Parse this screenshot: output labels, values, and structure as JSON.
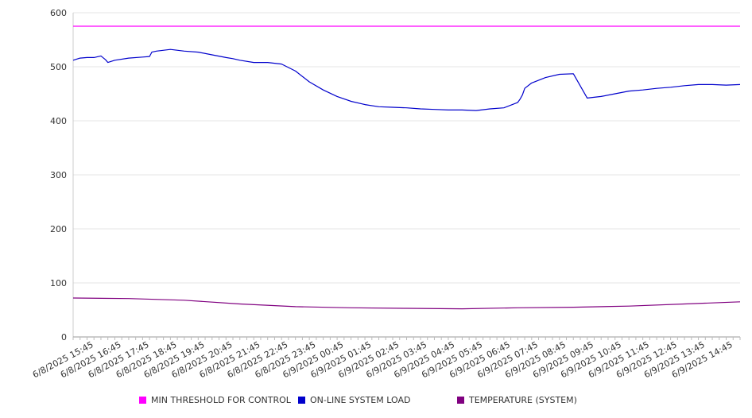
{
  "chart_data": {
    "type": "line",
    "title": "",
    "xlabel": "",
    "ylabel": "",
    "ylim": [
      0,
      600
    ],
    "yticks": [
      0,
      100,
      200,
      300,
      400,
      500,
      600
    ],
    "grid": true,
    "legend_placement": "bottom",
    "x_tick_labels": [
      "6/8/2025 15:45",
      "6/8/2025 16:45",
      "6/8/2025 17:45",
      "6/8/2025 18:45",
      "6/8/2025 19:45",
      "6/8/2025 20:45",
      "6/8/2025 21:45",
      "6/8/2025 22:45",
      "6/8/2025 23:45",
      "6/9/2025 00:45",
      "6/9/2025 01:45",
      "6/9/2025 02:45",
      "6/9/2025 03:45",
      "6/9/2025 04:45",
      "6/9/2025 05:45",
      "6/9/2025 06:45",
      "6/9/2025 07:45",
      "6/9/2025 08:45",
      "6/9/2025 09:45",
      "6/9/2025 10:45",
      "6/9/2025 11:45",
      "6/9/2025 12:45",
      "6/9/2025 13:45",
      "6/9/2025 14:45"
    ],
    "x_start": "6/8/2025 15:00",
    "x_end": "6/9/2025 15:00",
    "series": [
      {
        "name": "MIN THRESHOLD FOR CONTROL",
        "color": "#ff00ff",
        "x": [
          "6/8/2025 15:00",
          "6/9/2025 15:00"
        ],
        "values": [
          575,
          575
        ]
      },
      {
        "name": "ON-LINE SYSTEM LOAD",
        "color": "#0000cc",
        "x": [
          "6/8/2025 15:00",
          "6/8/2025 15:15",
          "6/8/2025 15:30",
          "6/8/2025 15:45",
          "6/8/2025 16:00",
          "6/8/2025 16:10",
          "6/8/2025 16:15",
          "6/8/2025 16:30",
          "6/8/2025 17:00",
          "6/8/2025 17:30",
          "6/8/2025 17:45",
          "6/8/2025 17:50",
          "6/8/2025 18:00",
          "6/8/2025 18:30",
          "6/8/2025 19:00",
          "6/8/2025 19:30",
          "6/8/2025 20:00",
          "6/8/2025 20:30",
          "6/8/2025 20:45",
          "6/8/2025 21:00",
          "6/8/2025 21:30",
          "6/8/2025 22:00",
          "6/8/2025 22:30",
          "6/8/2025 23:00",
          "6/8/2025 23:30",
          "6/9/2025 00:00",
          "6/9/2025 00:30",
          "6/9/2025 01:00",
          "6/9/2025 01:30",
          "6/9/2025 02:00",
          "6/9/2025 02:30",
          "6/9/2025 03:00",
          "6/9/2025 03:30",
          "6/9/2025 04:00",
          "6/9/2025 04:30",
          "6/9/2025 05:00",
          "6/9/2025 05:30",
          "6/9/2025 06:00",
          "6/9/2025 06:30",
          "6/9/2025 07:00",
          "6/9/2025 07:05",
          "6/9/2025 07:10",
          "6/9/2025 07:15",
          "6/9/2025 07:30",
          "6/9/2025 08:00",
          "6/9/2025 08:30",
          "6/9/2025 09:00",
          "6/9/2025 09:30",
          "6/9/2025 10:00",
          "6/9/2025 10:30",
          "6/9/2025 11:00",
          "6/9/2025 11:30",
          "6/9/2025 12:00",
          "6/9/2025 12:30",
          "6/9/2025 13:00",
          "6/9/2025 13:30",
          "6/9/2025 14:00",
          "6/9/2025 14:30",
          "6/9/2025 15:00"
        ],
        "values": [
          512,
          516,
          517,
          517,
          520,
          513,
          508,
          512,
          516,
          518,
          519,
          527,
          529,
          532,
          529,
          527,
          522,
          517,
          515,
          512,
          508,
          508,
          505,
          492,
          472,
          457,
          445,
          436,
          430,
          426,
          425,
          424,
          422,
          421,
          420,
          420,
          419,
          422,
          424,
          434,
          440,
          448,
          460,
          470,
          480,
          486,
          487,
          442,
          445,
          450,
          455,
          457,
          460,
          462,
          465,
          467,
          467,
          466,
          467
        ]
      },
      {
        "name": "TEMPERATURE (SYSTEM)",
        "color": "#800080",
        "x": [
          "6/8/2025 15:00",
          "6/8/2025 17:00",
          "6/8/2025 19:00",
          "6/8/2025 21:00",
          "6/8/2025 23:00",
          "6/9/2025 01:00",
          "6/9/2025 03:00",
          "6/9/2025 05:00",
          "6/9/2025 07:00",
          "6/9/2025 09:00",
          "6/9/2025 11:00",
          "6/9/2025 13:00",
          "6/9/2025 15:00"
        ],
        "values": [
          72,
          71,
          68,
          61,
          56,
          54,
          53,
          52,
          54,
          55,
          57,
          61,
          65
        ]
      }
    ]
  }
}
